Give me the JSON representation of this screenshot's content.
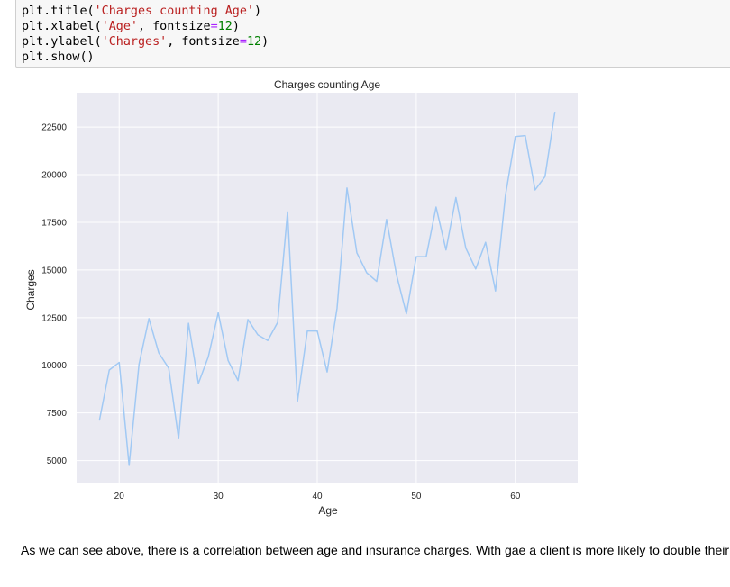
{
  "code_cell": {
    "lines": [
      {
        "prefix": "plt.title(",
        "str": "'Charges counting Age'",
        "mid": ")",
        "op": "",
        "num": "",
        "suffix": ""
      },
      {
        "prefix": "plt.xlabel(",
        "str": "'Age'",
        "mid": ", fontsize",
        "op": "=",
        "num": "12",
        "suffix": ")"
      },
      {
        "prefix": "plt.ylabel(",
        "str": "'Charges'",
        "mid": ", fontsize",
        "op": "=",
        "num": "12",
        "suffix": ")"
      },
      {
        "prefix": "plt.show()",
        "str": "",
        "mid": "",
        "op": "",
        "num": "",
        "suffix": ""
      }
    ]
  },
  "chart_data": {
    "type": "line",
    "title": "Charges counting Age",
    "xlabel": "Age",
    "ylabel": "Charges",
    "xlim": [
      15.7,
      66.3
    ],
    "ylim": [
      3800,
      24300
    ],
    "xticks": [
      20,
      30,
      40,
      50,
      60
    ],
    "yticks": [
      5000,
      7500,
      10000,
      12500,
      15000,
      17500,
      20000,
      22500
    ],
    "grid": true,
    "line_color": "#a1c9f4",
    "background_color": "#eaeaf2",
    "series": [
      {
        "x": [
          18,
          19,
          20,
          21,
          22,
          23,
          24,
          25,
          26,
          27,
          28,
          29,
          30,
          31,
          32,
          33,
          34,
          35,
          36,
          37,
          38,
          39,
          40,
          41,
          42,
          43,
          44,
          45,
          46,
          47,
          48,
          49,
          50,
          51,
          52,
          53,
          54,
          55,
          56,
          57,
          58,
          59,
          60,
          61,
          62,
          63,
          64
        ],
        "y": [
          7100,
          9750,
          10150,
          4750,
          10050,
          12450,
          10650,
          9850,
          6150,
          12200,
          9050,
          10450,
          12750,
          10250,
          9200,
          12400,
          11600,
          11300,
          12250,
          18050,
          8100,
          11800,
          11800,
          9650,
          13000,
          19300,
          15900,
          14850,
          14400,
          17650,
          14750,
          12700,
          15700,
          15700,
          18300,
          16050,
          18800,
          16150,
          15050,
          16450,
          13900,
          18900,
          22000,
          22050,
          19200,
          19900,
          23300
        ]
      }
    ]
  },
  "markdown_text": "As we can see above, there is a correlation between age and insurance charges. With gae a client is more likely to double their"
}
